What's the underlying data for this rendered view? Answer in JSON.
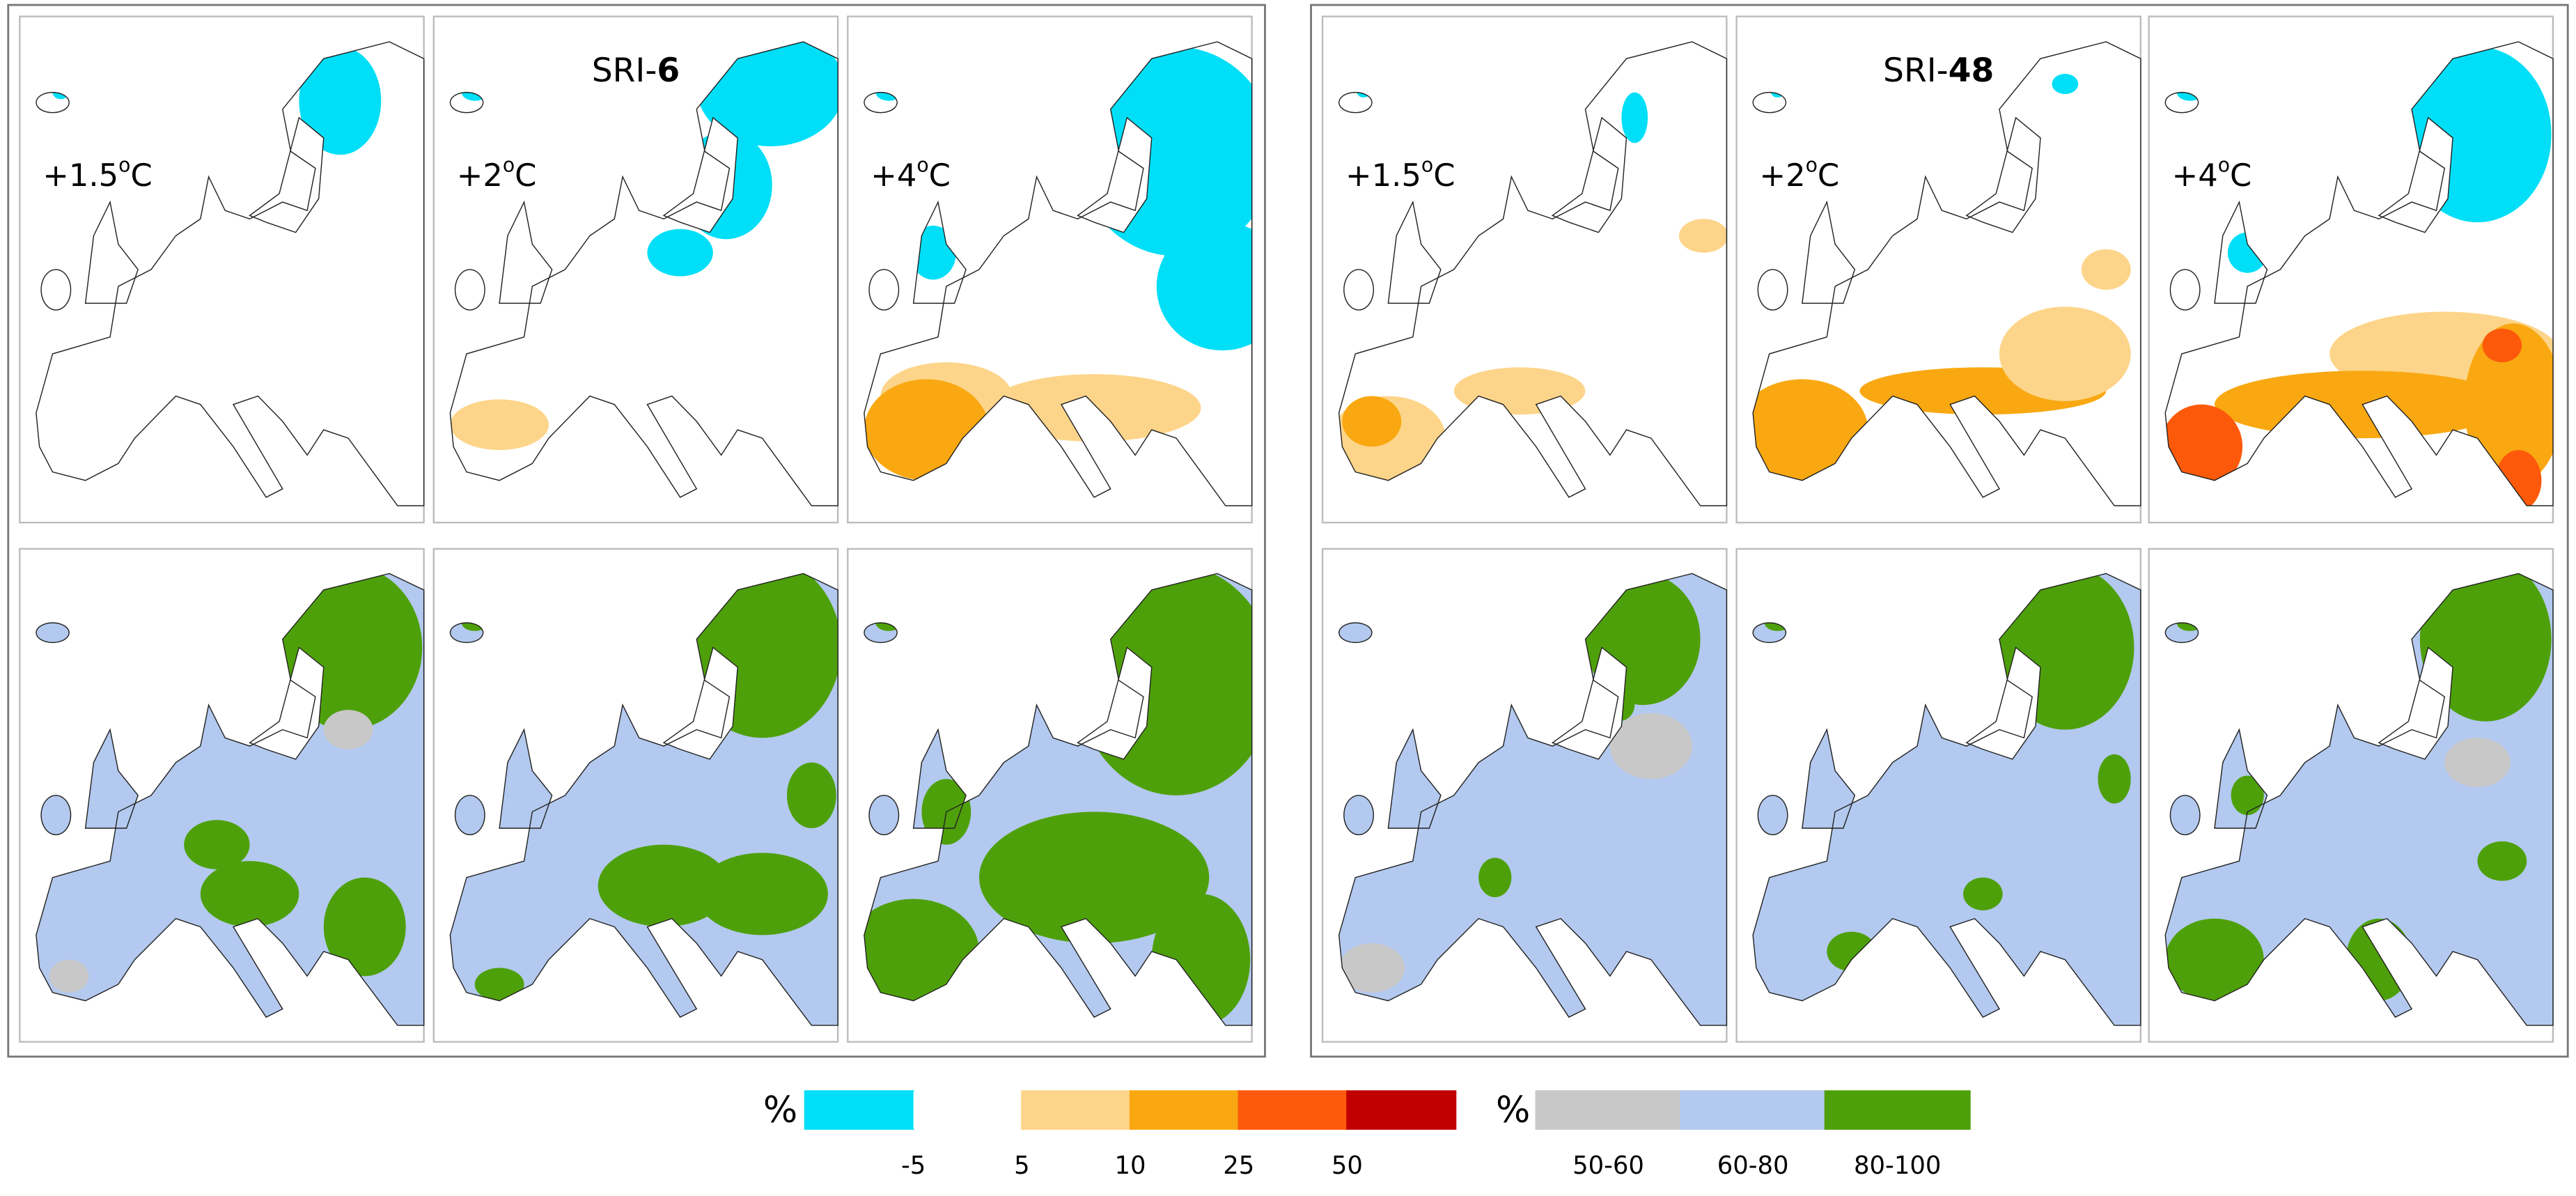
{
  "groups": [
    {
      "title": "SRI-",
      "title_bold": "6",
      "panels": [
        {
          "label": "+1.5",
          "sup": "o",
          "unit": "C"
        },
        {
          "label": "+2",
          "sup": "o",
          "unit": "C"
        },
        {
          "label": "+4",
          "sup": "o",
          "unit": "C"
        }
      ]
    },
    {
      "title": "SRI-",
      "title_bold": "48",
      "panels": [
        {
          "label": "+1.5",
          "sup": "o",
          "unit": "C"
        },
        {
          "label": "+2",
          "sup": "o",
          "unit": "C"
        },
        {
          "label": "+4",
          "sup": "o",
          "unit": "C"
        }
      ]
    }
  ],
  "legend_change": {
    "symbol": "%",
    "colors": [
      "#00dff7",
      "#ffffff",
      "#fdd58a",
      "#f9a811",
      "#fc5a0a",
      "#c00000"
    ],
    "labels": [
      "-5",
      "5",
      "10",
      "25",
      "50"
    ]
  },
  "legend_agreement": {
    "symbol": "%",
    "colors": [
      "#c8c8c8",
      "#b3c9ef",
      "#4ea00a"
    ],
    "labels": [
      "50-60",
      "60-80",
      "80-100"
    ]
  }
}
